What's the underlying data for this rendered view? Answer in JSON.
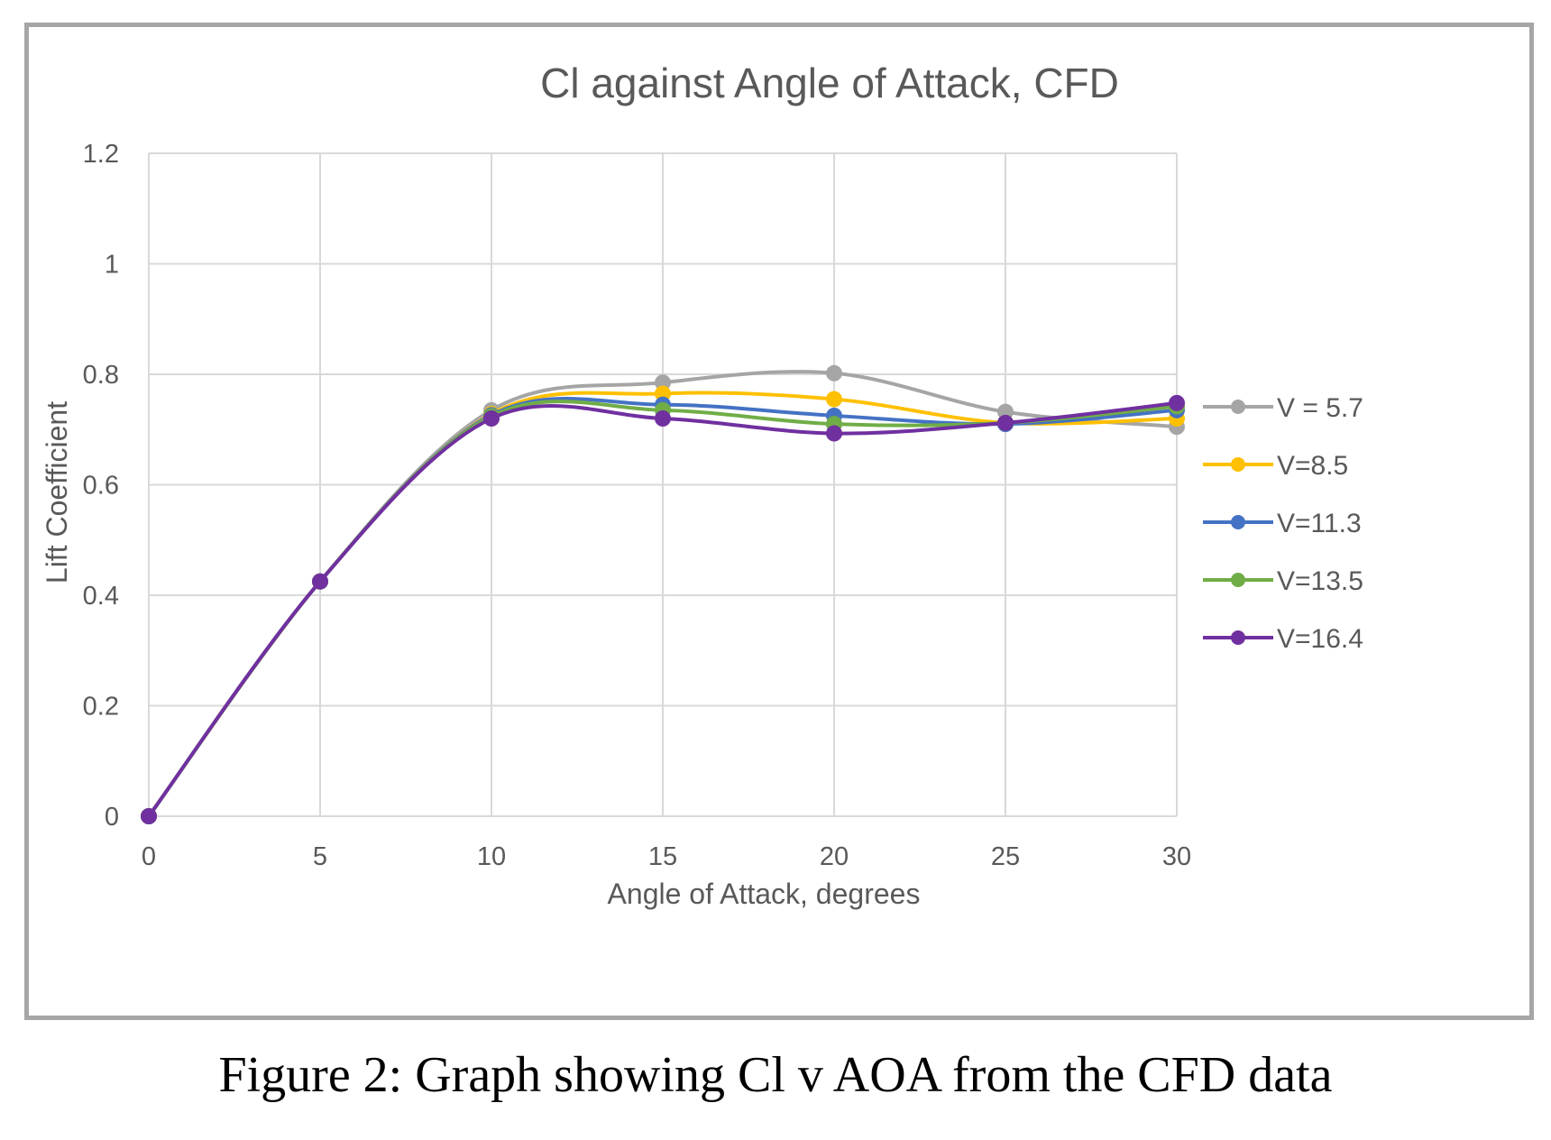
{
  "caption": "Figure 2: Graph showing Cl v AOA from the CFD data",
  "chart_data": {
    "type": "line",
    "title": "Cl against Angle of Attack, CFD",
    "xlabel": "Angle of Attack, degrees",
    "ylabel": "Lift Coefficient",
    "x": [
      0,
      5,
      10,
      15,
      20,
      25,
      30
    ],
    "xlim": [
      0,
      30
    ],
    "ylim": [
      0,
      1.2
    ],
    "xticks": [
      "0",
      "5",
      "10",
      "15",
      "20",
      "25",
      "30"
    ],
    "yticks": [
      "0",
      "0.2",
      "0.4",
      "0.6",
      "0.8",
      "1",
      "1.2"
    ],
    "grid": true,
    "smooth_lines": true,
    "legend_position": "right",
    "series": [
      {
        "name": "V = 5.7",
        "color": "#a5a5a5",
        "values": [
          0,
          0.425,
          0.735,
          0.785,
          0.802,
          0.732,
          0.705
        ]
      },
      {
        "name": "V=8.5",
        "color": "#ffc000",
        "values": [
          0,
          0.425,
          0.728,
          0.765,
          0.755,
          0.712,
          0.72
        ]
      },
      {
        "name": "V=11.3",
        "color": "#4472c4",
        "values": [
          0,
          0.425,
          0.726,
          0.745,
          0.725,
          0.71,
          0.735
        ]
      },
      {
        "name": "V=13.5",
        "color": "#70ad47",
        "values": [
          0,
          0.425,
          0.724,
          0.735,
          0.71,
          0.712,
          0.742
        ]
      },
      {
        "name": "V=16.4",
        "color": "#7030a0",
        "values": [
          0,
          0.425,
          0.72,
          0.72,
          0.693,
          0.712,
          0.748
        ]
      }
    ]
  }
}
